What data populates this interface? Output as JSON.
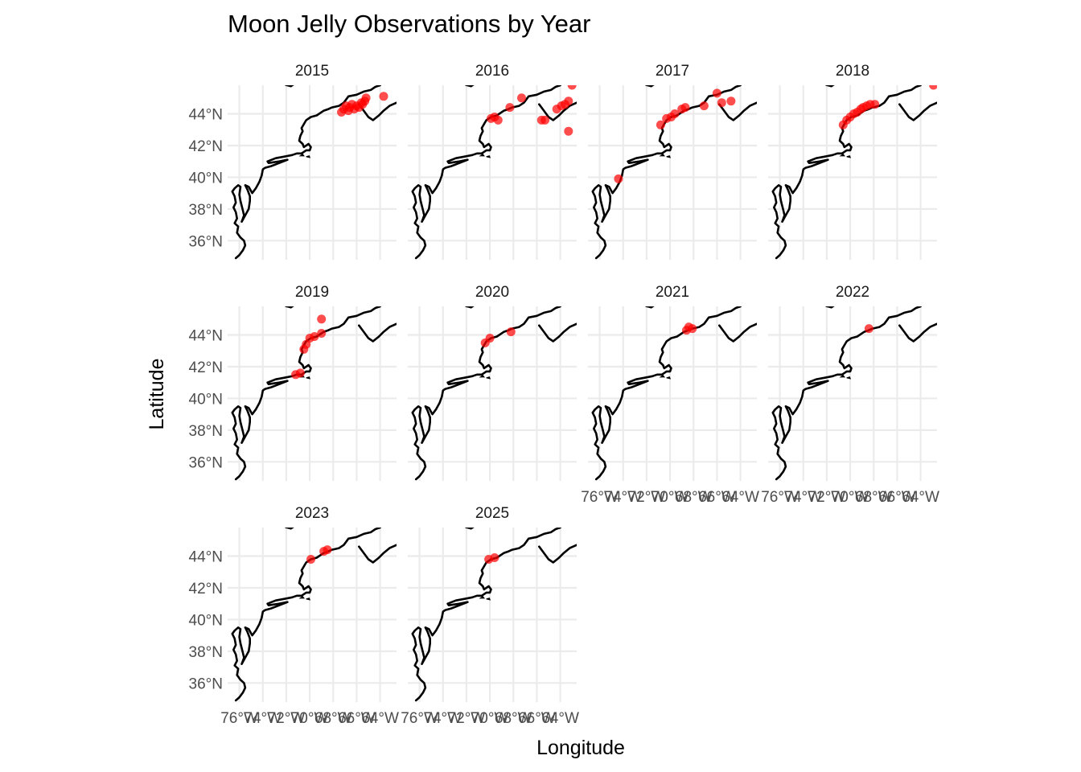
{
  "chart_data": {
    "type": "scatter",
    "subtype": "faceted map",
    "title": "Moon Jelly Observations by Year",
    "xlabel": "Longitude",
    "ylabel": "Latitude",
    "xlim": [
      -77.0,
      -62.6
    ],
    "ylim": [
      34.8,
      45.8
    ],
    "x_ticks": [
      -76,
      -74,
      -72,
      -70,
      -68,
      -66,
      -64
    ],
    "x_tick_labels": [
      "76°W",
      "74°W",
      "72°W",
      "70°W",
      "68°W",
      "66°W",
      "64°W"
    ],
    "y_ticks": [
      36,
      38,
      40,
      42,
      44
    ],
    "y_tick_labels": [
      "36°N",
      "38°N",
      "40°N",
      "42°N",
      "44°N"
    ],
    "grid": true,
    "point_color": "#ff0000",
    "coastline_color": "#000000",
    "panels": [
      {
        "label": "2015",
        "points": [
          [
            -67.3,
            44.1
          ],
          [
            -67.1,
            44.3
          ],
          [
            -66.9,
            44.5
          ],
          [
            -66.7,
            44.2
          ],
          [
            -66.6,
            44.4
          ],
          [
            -66.4,
            44.6
          ],
          [
            -66.2,
            44.3
          ],
          [
            -66.0,
            44.5
          ],
          [
            -65.8,
            44.4
          ],
          [
            -65.6,
            44.7
          ],
          [
            -65.5,
            44.6
          ],
          [
            -65.3,
            44.8
          ],
          [
            -65.2,
            45.0
          ],
          [
            -63.7,
            45.1
          ]
        ]
      },
      {
        "label": "2016",
        "points": [
          [
            -69.9,
            43.7
          ],
          [
            -69.6,
            43.8
          ],
          [
            -69.3,
            43.6
          ],
          [
            -68.3,
            44.4
          ],
          [
            -67.3,
            45.0
          ],
          [
            -65.6,
            43.6
          ],
          [
            -65.3,
            43.6
          ],
          [
            -64.3,
            44.3
          ],
          [
            -63.9,
            44.5
          ],
          [
            -63.6,
            44.6
          ],
          [
            -63.3,
            44.8
          ],
          [
            -63.0,
            45.8
          ],
          [
            -63.3,
            42.9
          ]
        ]
      },
      {
        "label": "2017",
        "points": [
          [
            -74.4,
            39.9
          ],
          [
            -70.8,
            43.3
          ],
          [
            -70.3,
            43.7
          ],
          [
            -69.9,
            43.8
          ],
          [
            -69.6,
            44.0
          ],
          [
            -69.0,
            44.3
          ],
          [
            -68.7,
            44.4
          ],
          [
            -67.1,
            44.5
          ],
          [
            -66.0,
            45.3
          ],
          [
            -65.6,
            44.7
          ],
          [
            -64.8,
            44.8
          ]
        ]
      },
      {
        "label": "2018",
        "points": [
          [
            -70.6,
            43.3
          ],
          [
            -70.3,
            43.6
          ],
          [
            -70.0,
            43.8
          ],
          [
            -69.7,
            44.0
          ],
          [
            -69.4,
            44.1
          ],
          [
            -69.1,
            44.3
          ],
          [
            -68.9,
            44.4
          ],
          [
            -68.6,
            44.5
          ],
          [
            -68.3,
            44.6
          ],
          [
            -67.9,
            44.6
          ],
          [
            -62.9,
            45.8
          ]
        ]
      },
      {
        "label": "2019",
        "points": [
          [
            -71.2,
            41.5
          ],
          [
            -70.8,
            41.6
          ],
          [
            -70.5,
            43.1
          ],
          [
            -70.3,
            43.4
          ],
          [
            -70.0,
            43.8
          ],
          [
            -69.6,
            43.9
          ],
          [
            -69.0,
            44.1
          ],
          [
            -69.0,
            45.0
          ]
        ]
      },
      {
        "label": "2020",
        "points": [
          [
            -70.4,
            43.5
          ],
          [
            -70.0,
            43.8
          ],
          [
            -68.2,
            44.2
          ]
        ]
      },
      {
        "label": "2021",
        "points": [
          [
            -68.6,
            44.3
          ],
          [
            -68.4,
            44.5
          ],
          [
            -68.1,
            44.4
          ]
        ]
      },
      {
        "label": "2022",
        "points": [
          [
            -68.4,
            44.4
          ]
        ]
      },
      {
        "label": "2023",
        "points": [
          [
            -69.9,
            43.8
          ],
          [
            -68.8,
            44.3
          ],
          [
            -68.5,
            44.4
          ]
        ]
      },
      {
        "label": "2025",
        "points": [
          [
            -70.1,
            43.8
          ],
          [
            -69.6,
            43.9
          ]
        ]
      }
    ]
  }
}
